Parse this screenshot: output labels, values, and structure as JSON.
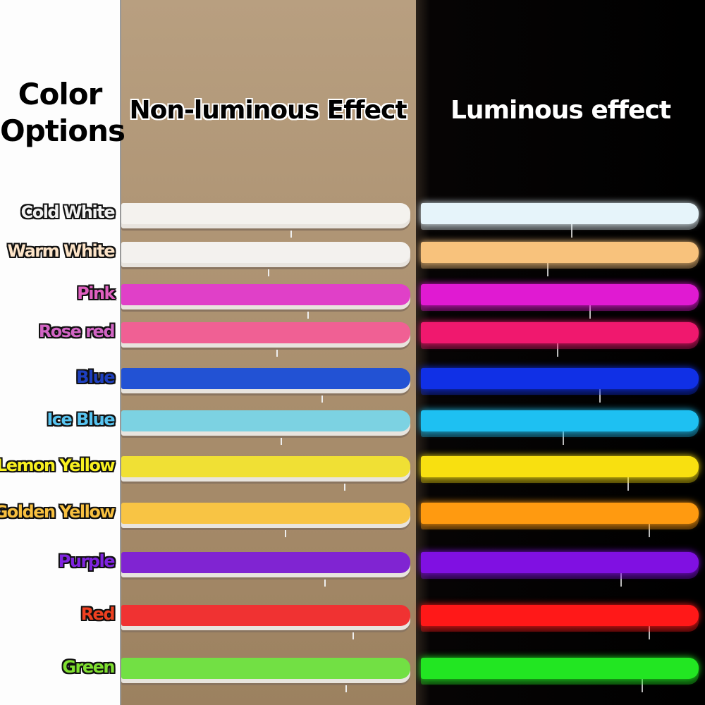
{
  "title_line1": "Color",
  "title_line2": "Options",
  "non_luminous_heading": "Non-luminous Effect",
  "luminous_heading": "Luminous effect",
  "options": [
    {
      "name": "Cold White",
      "label_color": "#f2f2f2",
      "off_color": "#f4f2ee",
      "on_color": "#e6f4fa"
    },
    {
      "name": "Warm White",
      "label_color": "#fde4c8",
      "off_color": "#f3f1ee",
      "on_color": "#f8c27c"
    },
    {
      "name": "Pink",
      "label_color": "#e060c0",
      "off_color": "#e040c8",
      "on_color": "#e01ad2"
    },
    {
      "name": "Rose red",
      "label_color": "#d265c4",
      "off_color": "#f06094",
      "on_color": "#f0186e"
    },
    {
      "name": "Blue",
      "label_color": "#1e40c0",
      "off_color": "#2252d4",
      "on_color": "#1030e6"
    },
    {
      "name": "Ice Blue",
      "label_color": "#58c4f0",
      "off_color": "#7cd2e2",
      "on_color": "#1ec0f2"
    },
    {
      "name": "Lemon Yellow",
      "label_color": "#f8f020",
      "off_color": "#f0e034",
      "on_color": "#f8e010"
    },
    {
      "name": "Golden Yellow",
      "label_color": "#f8c040",
      "off_color": "#f8c444",
      "on_color": "#ff9a10"
    },
    {
      "name": "Purple",
      "label_color": "#8024e0",
      "off_color": "#8024d2",
      "on_color": "#8010e2"
    },
    {
      "name": "Red",
      "label_color": "#f04020",
      "off_color": "#f03232",
      "on_color": "#ff1818"
    },
    {
      "name": "Green",
      "label_color": "#80e030",
      "off_color": "#72e044",
      "on_color": "#22e622"
    }
  ]
}
